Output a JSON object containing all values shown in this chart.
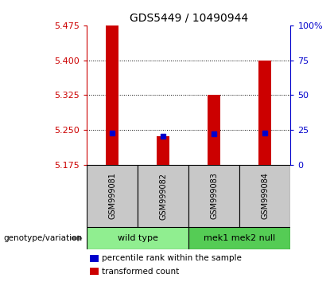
{
  "title": "GDS5449 / 10490944",
  "samples": [
    "GSM999081",
    "GSM999082",
    "GSM999083",
    "GSM999084"
  ],
  "bar_values": [
    5.475,
    5.237,
    5.325,
    5.4
  ],
  "percentile_values": [
    5.243,
    5.237,
    5.242,
    5.243
  ],
  "baseline": 5.175,
  "ylim": [
    5.175,
    5.475
  ],
  "yticks_left": [
    5.175,
    5.25,
    5.325,
    5.4,
    5.475
  ],
  "yticks_right": [
    0,
    25,
    50,
    75,
    100
  ],
  "ytick_right_labels": [
    "0",
    "25",
    "50",
    "75",
    "100%"
  ],
  "bar_color": "#cc0000",
  "percentile_color": "#0000cc",
  "groups": [
    {
      "label": "wild type",
      "indices": [
        0,
        1
      ],
      "color": "#90ee90"
    },
    {
      "label": "mek1 mek2 null",
      "indices": [
        2,
        3
      ],
      "color": "#55cc55"
    }
  ],
  "legend_items": [
    {
      "label": "transformed count",
      "color": "#cc0000"
    },
    {
      "label": "percentile rank within the sample",
      "color": "#0000cc"
    }
  ],
  "genotype_label": "genotype/variation",
  "bar_width": 0.25,
  "sample_box_color": "#c8c8c8",
  "left_color": "#cc0000",
  "right_color": "#0000cc",
  "grid_color": "#000000",
  "fig_bg": "#ffffff"
}
